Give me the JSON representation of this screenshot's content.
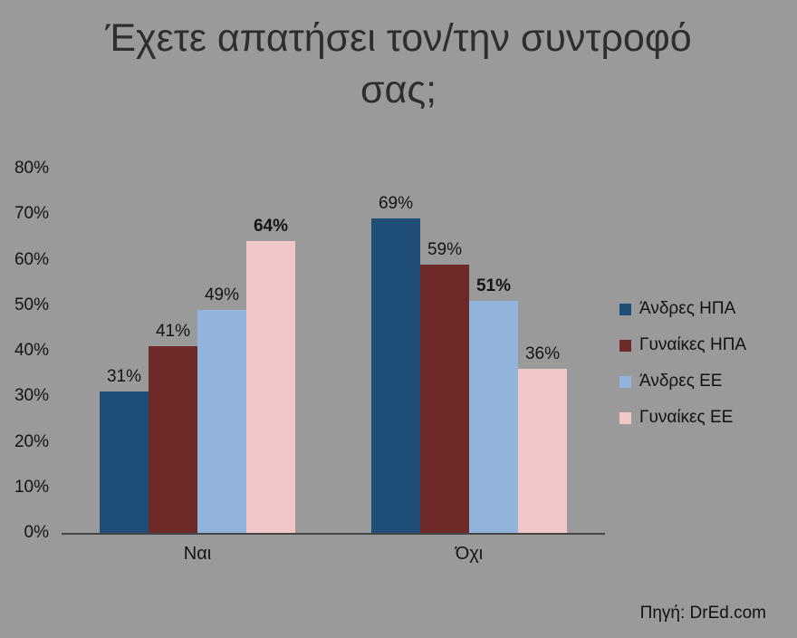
{
  "colors": {
    "background": "#9A9A9A",
    "title_text": "#2e2e2e",
    "axis_text": "#141414",
    "axis_line": "#454545"
  },
  "chart_data": {
    "type": "bar",
    "title": "Έχετε απατήσει τον/την συντροφό σας;",
    "categories": [
      "Ναι",
      "Όχι"
    ],
    "series": [
      {
        "name": "Άνδρες ΗΠΑ",
        "color": "#1F4E79",
        "values": [
          31,
          69
        ]
      },
      {
        "name": "Γυναίκες ΗΠΑ",
        "color": "#6E2A29",
        "values": [
          41,
          59
        ]
      },
      {
        "name": "Άνδρες ΕΕ",
        "color": "#92B4DC",
        "values": [
          49,
          51
        ]
      },
      {
        "name": "Γυναίκες ΕΕ",
        "color": "#F0C6C8",
        "values": [
          64,
          36
        ]
      }
    ],
    "bold_labels": [
      [
        false,
        false
      ],
      [
        false,
        false
      ],
      [
        false,
        true
      ],
      [
        true,
        false
      ]
    ],
    "value_suffix": "%",
    "ylim": [
      0,
      80
    ],
    "yticks": [
      "0%",
      "10%",
      "20%",
      "30%",
      "40%",
      "50%",
      "60%",
      "70%",
      "80%"
    ],
    "grid": false,
    "legend_position": "right",
    "source": "Πηγή: DrEd.com"
  }
}
